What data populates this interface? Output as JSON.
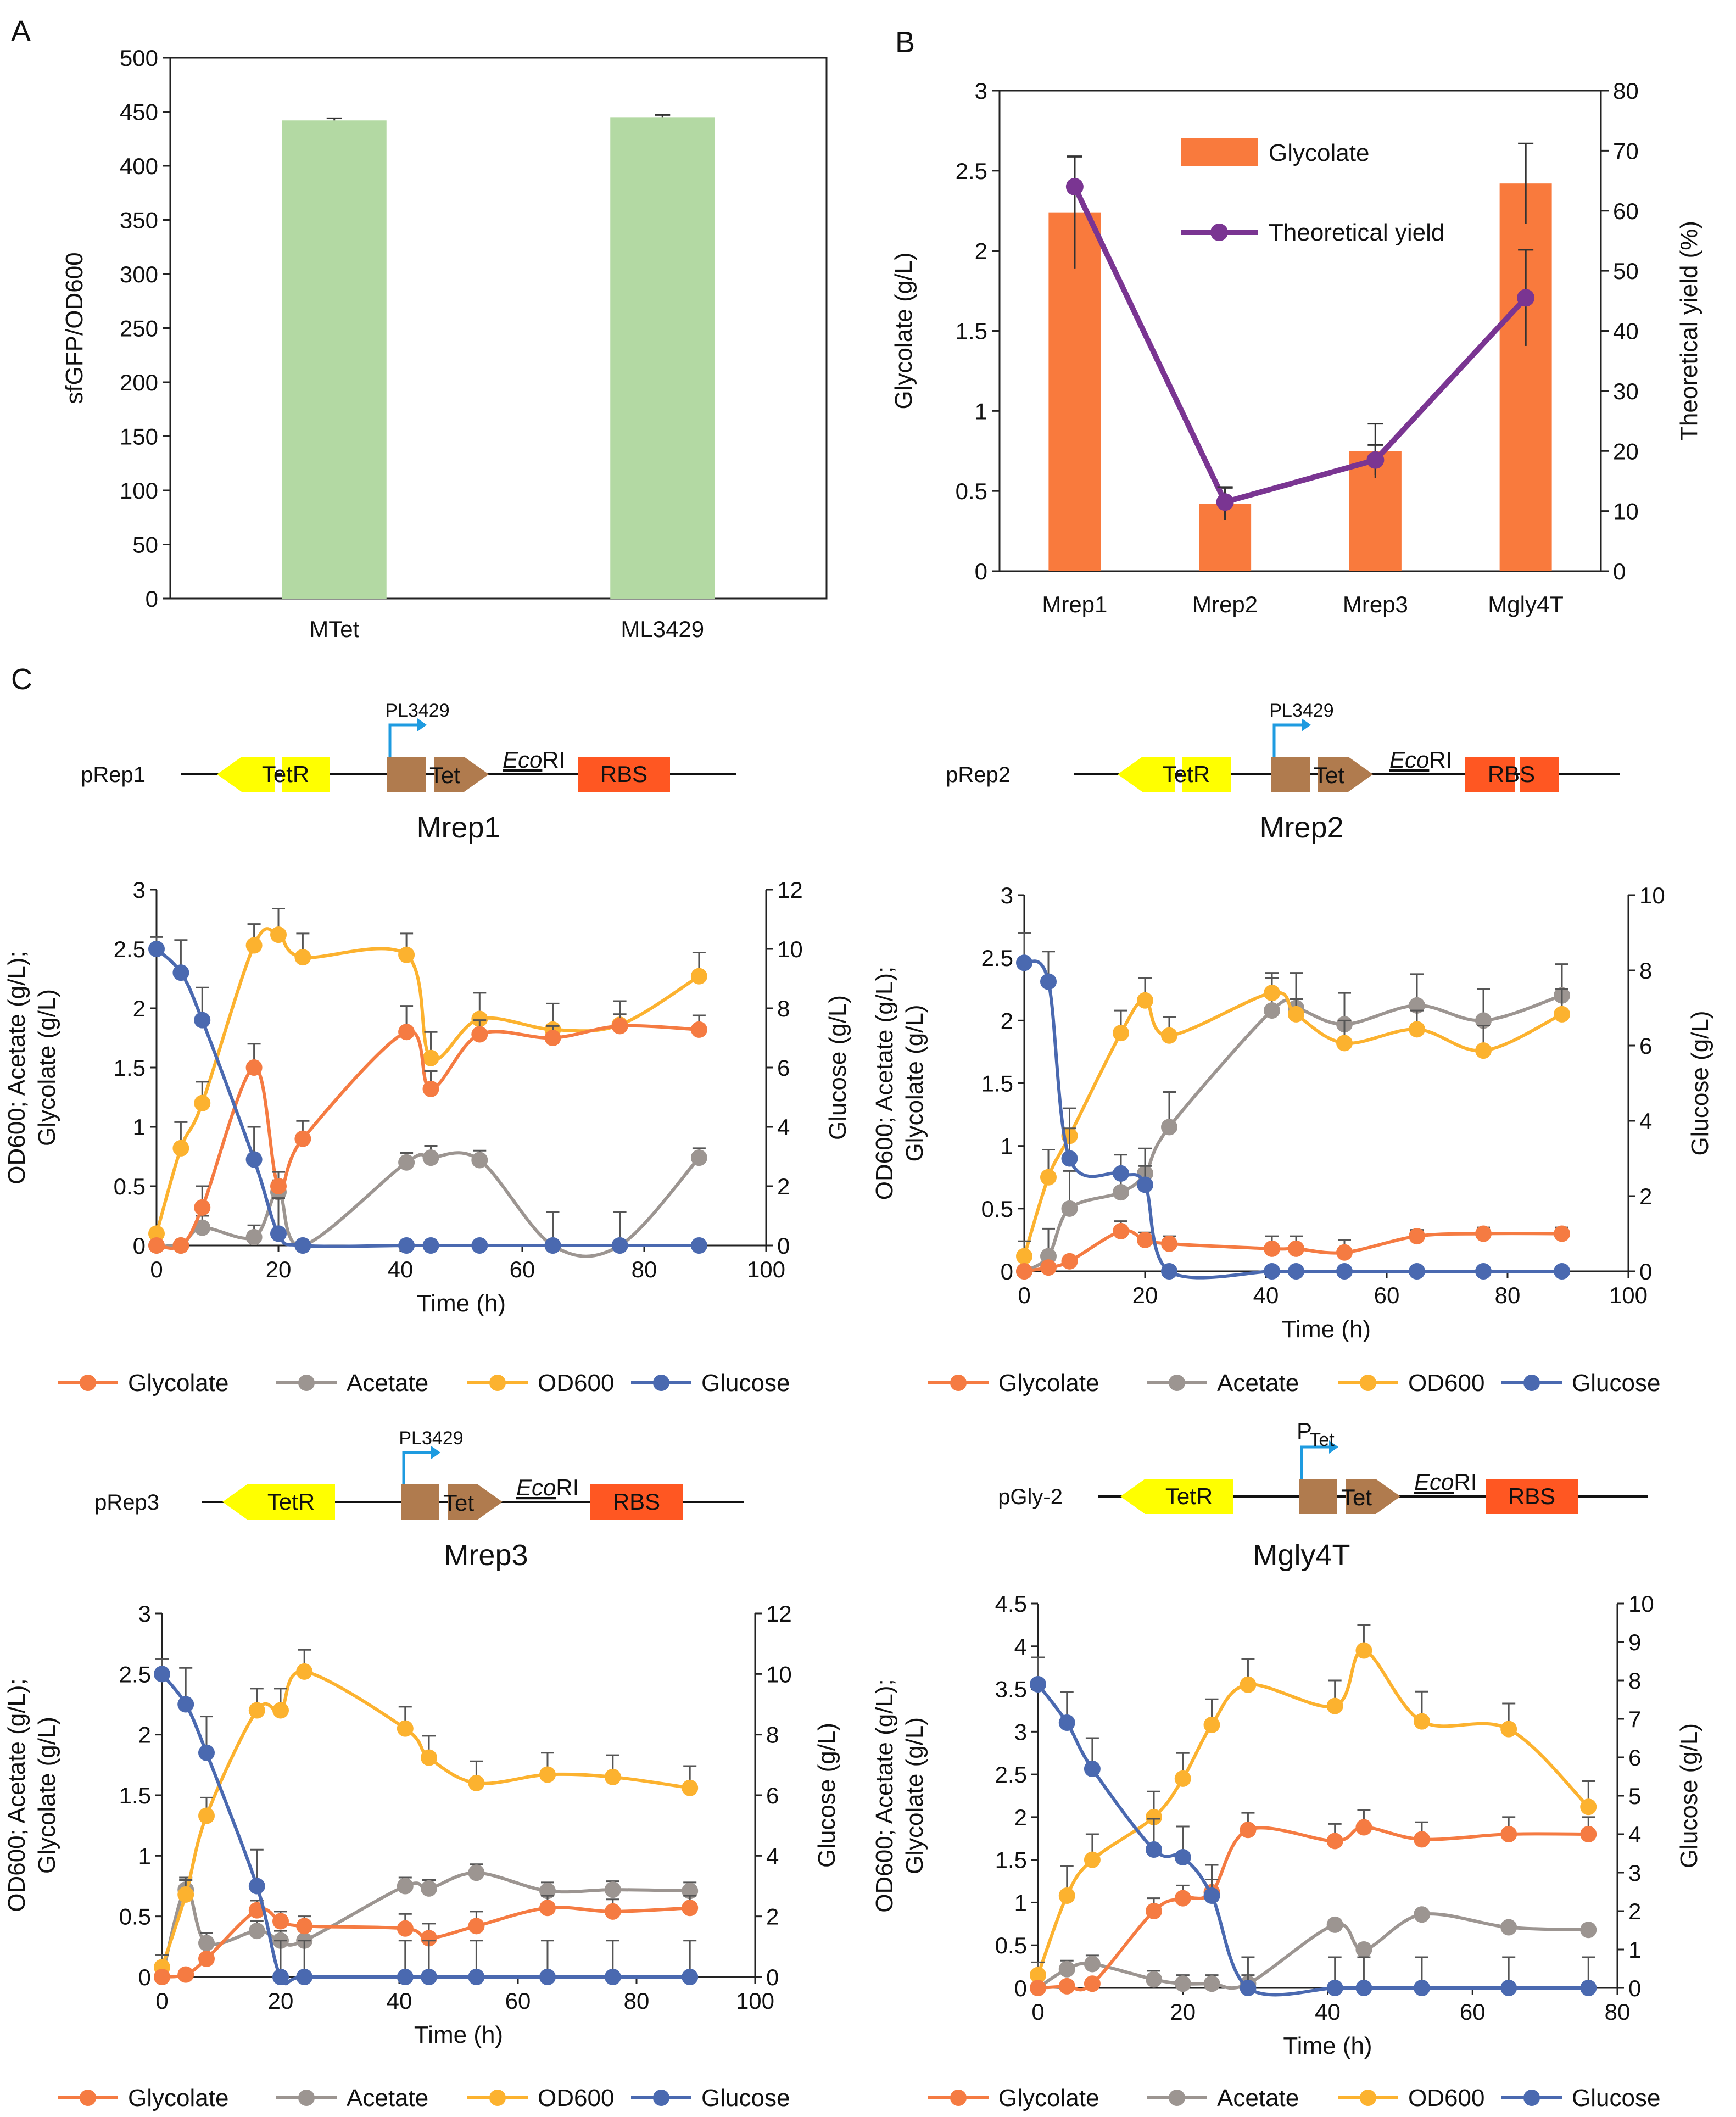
{
  "panels": {
    "a": "A",
    "b": "B",
    "c": "C"
  },
  "chart_data": [
    {
      "id": "A",
      "type": "bar",
      "categories": [
        "MTet",
        "ML3429"
      ],
      "values": [
        442,
        445
      ],
      "errors": [
        2,
        2
      ],
      "ylabel": "sfGFP/OD600",
      "ylim": [
        0,
        500
      ],
      "yticks": [
        0,
        50,
        100,
        150,
        200,
        250,
        300,
        350,
        400,
        450,
        500
      ],
      "colors": {
        "bar": "#b3d9a3"
      }
    },
    {
      "id": "B",
      "type": "bar",
      "categories": [
        "Mrep1",
        "Mrep2",
        "Mrep3",
        "Mgly4T"
      ],
      "series": [
        {
          "name": "Glycolate",
          "axis": "left",
          "values": [
            2.24,
            0.42,
            0.75,
            2.42
          ],
          "errors": [
            0.35,
            0.1,
            0.17,
            0.25
          ]
        },
        {
          "name": "Theoretical yield",
          "axis": "right",
          "values": [
            64,
            11.5,
            18.5,
            45.5
          ],
          "errors": [
            5,
            2.5,
            2.5,
            8
          ]
        }
      ],
      "ylabel": "Glycolate (g/L)",
      "y2label": "Theoretical yield (%)",
      "ylim": [
        0,
        3
      ],
      "y2lim": [
        0,
        80
      ],
      "yticks": [
        0,
        0.5,
        1,
        1.5,
        2,
        2.5,
        3
      ],
      "y2ticks": [
        0,
        10,
        20,
        30,
        40,
        50,
        60,
        70,
        80
      ],
      "colors": {
        "bar": "#f97a3d",
        "line": "#7a3592"
      }
    },
    {
      "id": "C1",
      "type": "line",
      "strain": "Mrep1",
      "plasmid": "pRep1",
      "promoter": "PL3429",
      "parts": {
        "tetr": "TetR",
        "tet": "Tet",
        "ecori_em": "Eco",
        "ecori": "RI",
        "rbs": "RBS"
      },
      "xlabel": "Time (h)",
      "ylabel": [
        "OD600; Acetate (g/L);",
        "Glycolate (g/L)"
      ],
      "y2label": "Glucose (g/L)",
      "xlim": [
        0,
        100
      ],
      "ylim": [
        0,
        3
      ],
      "y2lim": [
        0,
        12
      ],
      "xticks": [
        0,
        20,
        40,
        60,
        80,
        100
      ],
      "yticks": [
        0,
        0.5,
        1,
        1.5,
        2,
        2.5,
        3
      ],
      "y2ticks": [
        0,
        2,
        4,
        6,
        8,
        10,
        12
      ],
      "x": [
        0,
        4,
        7.5,
        16,
        20,
        24,
        41,
        45,
        53,
        65,
        76,
        89
      ],
      "series": [
        {
          "name": "Glycolate",
          "axis": "left",
          "color": "#f57b42",
          "values": [
            0,
            0,
            0.32,
            1.5,
            0.5,
            0.9,
            1.8,
            1.32,
            1.78,
            1.75,
            1.85,
            1.82
          ],
          "errors": [
            0,
            0,
            0.18,
            0.2,
            0.12,
            0.15,
            0.22,
            0.15,
            0.12,
            0.1,
            0.1,
            0.12
          ]
        },
        {
          "name": "Acetate",
          "axis": "left",
          "color": "#9c9591",
          "values": [
            0,
            0,
            0.15,
            0.07,
            0.45,
            0,
            0.7,
            0.74,
            0.72,
            0,
            0,
            0.74
          ],
          "errors": [
            0,
            0,
            0.1,
            0.1,
            0.1,
            0,
            0.08,
            0.1,
            0.08,
            0.28,
            0.28,
            0.08
          ]
        },
        {
          "name": "OD600",
          "axis": "left",
          "color": "#fcb22f",
          "values": [
            0.1,
            0.82,
            1.2,
            2.53,
            2.62,
            2.43,
            2.45,
            1.58,
            1.91,
            1.82,
            1.86,
            2.27
          ],
          "errors": [
            0,
            0.22,
            0.18,
            0.18,
            0.22,
            0.2,
            0.18,
            0.22,
            0.22,
            0.22,
            0.2,
            0.2
          ]
        },
        {
          "name": "Glucose",
          "axis": "right",
          "color": "#4a69b0",
          "values": [
            10,
            9.2,
            7.6,
            2.9,
            0.4,
            0,
            0,
            0,
            0,
            0,
            0,
            0
          ],
          "errors": [
            0.4,
            1.1,
            1.1,
            1.1,
            1.2,
            0,
            0,
            0,
            0,
            0,
            0,
            0
          ]
        }
      ]
    },
    {
      "id": "C2",
      "type": "line",
      "strain": "Mrep2",
      "plasmid": "pRep2",
      "promoter": "PL3429",
      "parts": {
        "tetr": "TetR",
        "tet": "Tet",
        "ecori_em": "Eco",
        "ecori": "RI",
        "rbs": "RBS"
      },
      "xlabel": "Time (h)",
      "ylabel": [
        "OD600; Acetate (g/L);",
        "Glycolate (g/L)"
      ],
      "y2label": "Glucose (g/L)",
      "xlim": [
        0,
        100
      ],
      "ylim": [
        0,
        3
      ],
      "y2lim": [
        0,
        10
      ],
      "xticks": [
        0,
        20,
        40,
        60,
        80,
        100
      ],
      "yticks": [
        0,
        0.5,
        1,
        1.5,
        2,
        2.5,
        3
      ],
      "y2ticks": [
        0,
        2,
        4,
        6,
        8,
        10
      ],
      "x": [
        0,
        4,
        7.5,
        16,
        20,
        24,
        41,
        45,
        53,
        65,
        76,
        89
      ],
      "series": [
        {
          "name": "Glycolate",
          "axis": "left",
          "color": "#f57b42",
          "values": [
            0,
            0.03,
            0.08,
            0.32,
            0.25,
            0.22,
            0.18,
            0.18,
            0.15,
            0.28,
            0.3,
            0.3
          ],
          "errors": [
            0,
            0,
            0,
            0.08,
            0.06,
            0.06,
            0.1,
            0.1,
            0.1,
            0.05,
            0.05,
            0.05
          ]
        },
        {
          "name": "Acetate",
          "axis": "left",
          "color": "#9c9591",
          "values": [
            0,
            0.12,
            0.5,
            0.63,
            0.78,
            1.15,
            2.08,
            2.1,
            1.97,
            2.12,
            2,
            2.2
          ],
          "errors": [
            0,
            0.22,
            0.3,
            0.3,
            0.2,
            0.28,
            0.3,
            0.28,
            0.25,
            0.25,
            0.25,
            0.25
          ]
        },
        {
          "name": "OD600",
          "axis": "left",
          "color": "#fcb22f",
          "values": [
            0.12,
            0.75,
            1.08,
            1.9,
            2.16,
            1.88,
            2.22,
            2.05,
            1.82,
            1.93,
            1.76,
            2.05
          ],
          "errors": [
            0.12,
            0.22,
            0.22,
            0.18,
            0.18,
            0.15,
            0.12,
            0.12,
            0.18,
            0.15,
            0.2,
            0.2
          ]
        },
        {
          "name": "Glucose",
          "axis": "right",
          "color": "#4a69b0",
          "values": [
            8.2,
            7.7,
            3,
            2.6,
            2.3,
            0,
            0,
            0,
            0,
            0,
            0,
            0
          ],
          "errors": [
            0.8,
            0.8,
            0.8,
            0.5,
            0.5,
            0,
            0,
            0,
            0,
            0,
            0,
            0
          ]
        }
      ]
    },
    {
      "id": "C3",
      "type": "line",
      "strain": "Mrep3",
      "plasmid": "pRep3",
      "promoter": "PL3429",
      "parts": {
        "tetr": "TetR",
        "tet": "Tet",
        "ecori_em": "Eco",
        "ecori": "RI",
        "rbs": "RBS"
      },
      "xlabel": "Time (h)",
      "ylabel": [
        "OD600; Acetate (g/L);",
        "Glycolate (g/L)"
      ],
      "y2label": "Glucose (g/L)",
      "xlim": [
        0,
        100
      ],
      "ylim": [
        0,
        3
      ],
      "y2lim": [
        0,
        12
      ],
      "xticks": [
        0,
        20,
        40,
        60,
        80,
        100
      ],
      "yticks": [
        0,
        0.5,
        1,
        1.5,
        2,
        2.5,
        3
      ],
      "y2ticks": [
        0,
        2,
        4,
        6,
        8,
        10,
        12
      ],
      "x": [
        0,
        4,
        7.5,
        16,
        20,
        24,
        41,
        45,
        53,
        65,
        76,
        89
      ],
      "series": [
        {
          "name": "Glycolate",
          "axis": "left",
          "color": "#f57b42",
          "values": [
            0,
            0.02,
            0.15,
            0.55,
            0.46,
            0.42,
            0.4,
            0.32,
            0.42,
            0.57,
            0.54,
            0.57
          ],
          "errors": [
            0,
            0,
            0,
            0.08,
            0.08,
            0.08,
            0.12,
            0.12,
            0.12,
            0.1,
            0.1,
            0.1
          ]
        },
        {
          "name": "Acetate",
          "axis": "left",
          "color": "#9c9591",
          "values": [
            0,
            0.72,
            0.28,
            0.38,
            0.3,
            0.3,
            0.75,
            0.73,
            0.86,
            0.71,
            0.72,
            0.71
          ],
          "errors": [
            0,
            0.1,
            0.08,
            0.08,
            0.08,
            0.08,
            0.07,
            0.07,
            0.07,
            0.07,
            0.07,
            0.07
          ]
        },
        {
          "name": "OD600",
          "axis": "left",
          "color": "#fcb22f",
          "values": [
            0.08,
            0.68,
            1.33,
            2.2,
            2.2,
            2.52,
            2.05,
            1.81,
            1.6,
            1.67,
            1.65,
            1.56
          ],
          "errors": [
            0.1,
            0.12,
            0.15,
            0.18,
            0.18,
            0.18,
            0.18,
            0.18,
            0.18,
            0.18,
            0.18,
            0.18
          ]
        },
        {
          "name": "Glucose",
          "axis": "right",
          "color": "#4a69b0",
          "values": [
            10,
            9,
            7.4,
            3,
            0,
            0,
            0,
            0,
            0,
            0,
            0,
            0
          ],
          "errors": [
            0.5,
            1.2,
            1.2,
            1.2,
            1.2,
            1.2,
            1.2,
            1.2,
            1.2,
            1.2,
            1.2,
            1.2
          ]
        }
      ]
    },
    {
      "id": "C4",
      "type": "line",
      "strain": "Mgly4T",
      "plasmid": "pGly-2",
      "promoter": "P",
      "promoter_sub": "Tet",
      "parts": {
        "tetr": "TetR",
        "tet": "Tet",
        "ecori_em": "Eco",
        "ecori": "RI",
        "rbs": "RBS"
      },
      "xlabel": "Time (h)",
      "ylabel": [
        "OD600; Acetate (g/L);",
        "Glycolate (g/L)"
      ],
      "y2label": "Glucose (g/L)",
      "xlim": [
        0,
        80
      ],
      "ylim": [
        0,
        4.5
      ],
      "y2lim": [
        0,
        10
      ],
      "xticks": [
        0,
        20,
        40,
        60,
        80
      ],
      "yticks": [
        0,
        0.5,
        1,
        1.5,
        2,
        2.5,
        3,
        3.5,
        4,
        4.5
      ],
      "y2ticks": [
        0,
        1,
        2,
        3,
        4,
        5,
        6,
        7,
        8,
        9,
        10
      ],
      "x": [
        0,
        4,
        7.5,
        16,
        20,
        24,
        29,
        41,
        45,
        53,
        65,
        76
      ],
      "series": [
        {
          "name": "Glycolate",
          "axis": "left",
          "color": "#f57b42",
          "values": [
            0,
            0.02,
            0.05,
            0.9,
            1.05,
            1.12,
            1.85,
            1.72,
            1.88,
            1.74,
            1.8,
            1.8
          ],
          "errors": [
            0,
            0,
            0,
            0.15,
            0.15,
            0.15,
            0.2,
            0.2,
            0.2,
            0.2,
            0.2,
            0.2
          ]
        },
        {
          "name": "Acetate",
          "axis": "left",
          "color": "#9c9591",
          "values": [
            0,
            0.22,
            0.28,
            0.1,
            0.05,
            0.05,
            0.05,
            0.74,
            0.45,
            0.86,
            0.71,
            0.68
          ],
          "errors": [
            0,
            0.1,
            0.1,
            0.1,
            0.1,
            0.1,
            0.1,
            0.05,
            0.05,
            0.05,
            0.05,
            0.05
          ]
        },
        {
          "name": "OD600",
          "axis": "left",
          "color": "#fcb22f",
          "values": [
            0.15,
            1.08,
            1.5,
            2,
            2.45,
            3.08,
            3.55,
            3.3,
            3.95,
            3.12,
            3.03,
            2.12
          ],
          "errors": [
            0.15,
            0.35,
            0.3,
            0.3,
            0.3,
            0.3,
            0.3,
            0.3,
            0.3,
            0.35,
            0.3,
            0.3
          ]
        },
        {
          "name": "Glucose",
          "axis": "right",
          "color": "#4a69b0",
          "values": [
            7.9,
            6.9,
            5.7,
            3.6,
            3.4,
            2.4,
            0,
            0,
            0,
            0,
            0,
            0
          ],
          "errors": [
            0.7,
            0.8,
            0.8,
            0.8,
            0.8,
            0.8,
            0.8,
            0.8,
            0.8,
            0.8,
            0.8,
            0.8
          ]
        }
      ]
    }
  ]
}
